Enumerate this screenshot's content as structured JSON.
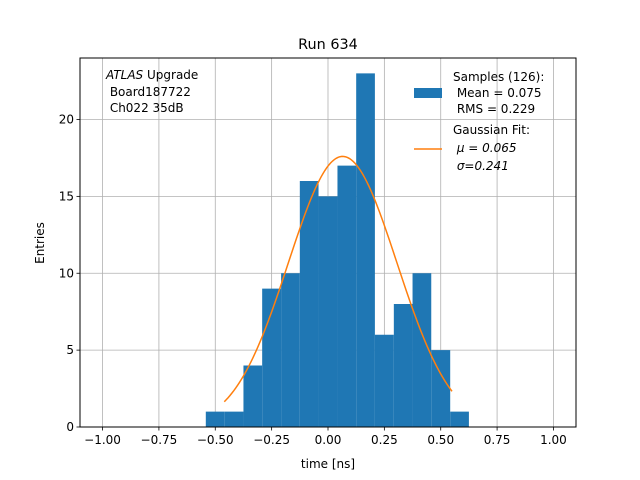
{
  "chart_data": {
    "type": "bar",
    "title": "Run 634",
    "xlabel": "time [ns]",
    "ylabel": "Entries",
    "xlim": [
      -1.1,
      1.1
    ],
    "ylim": [
      0,
      24
    ],
    "grid": true,
    "x_ticks": [
      -1.0,
      -0.75,
      -0.5,
      -0.25,
      0.0,
      0.25,
      0.5,
      0.75,
      1.0
    ],
    "x_tick_labels": [
      "−1.00",
      "−0.75",
      "−0.50",
      "−0.25",
      "0.00",
      "0.25",
      "0.50",
      "0.75",
      "1.00"
    ],
    "y_ticks": [
      0,
      5,
      10,
      15,
      20
    ],
    "y_tick_labels": [
      "0",
      "5",
      "10",
      "15",
      "20"
    ],
    "histogram": {
      "bin_edges": [
        -0.542,
        -0.458,
        -0.375,
        -0.292,
        -0.208,
        -0.125,
        -0.042,
        0.042,
        0.125,
        0.208,
        0.292,
        0.375,
        0.458,
        0.542,
        0.625
      ],
      "counts": [
        1,
        1,
        4,
        9,
        10,
        16,
        15,
        17,
        23,
        6,
        8,
        10,
        5,
        1
      ],
      "color": "#1f77b4"
    },
    "fit_curve": {
      "amplitude": 17.6,
      "mu": 0.065,
      "sigma": 0.241,
      "x_range": [
        -0.46,
        0.55
      ],
      "color": "#ff7f0e"
    },
    "annotation": {
      "lines": [
        {
          "italic": "ATLAS",
          "text": " Upgrade"
        },
        {
          "italic": "",
          "text": " Board187722"
        },
        {
          "italic": "",
          "text": " Ch022 35dB"
        }
      ]
    },
    "legend": {
      "placement": "top-right",
      "entries": [
        {
          "kind": "patch",
          "lines": [
            "Samples (126):",
            " Mean = 0.075",
            " RMS = 0.229"
          ]
        },
        {
          "kind": "line",
          "lines": [
            "Gaussian Fit:",
            " μ = 0.065",
            " σ=0.241"
          ]
        }
      ]
    }
  }
}
